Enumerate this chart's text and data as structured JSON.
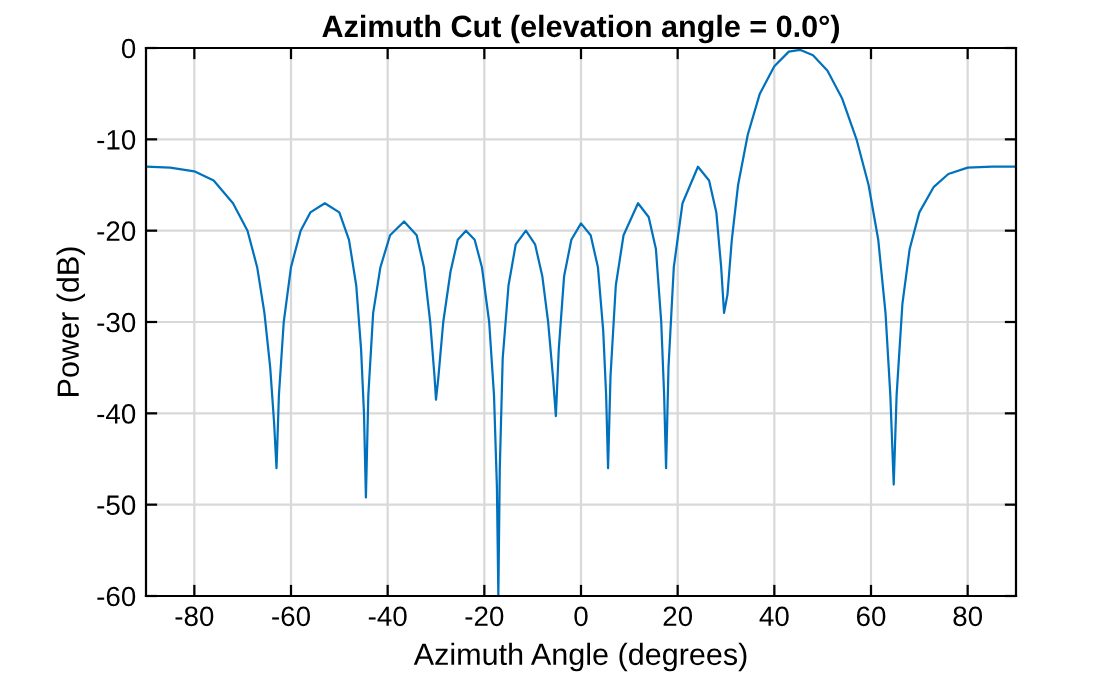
{
  "chart_data": {
    "type": "line",
    "title": "Azimuth Cut (elevation angle = 0.0°)",
    "xlabel": "Azimuth Angle (degrees)",
    "ylabel": "Power (dB)",
    "series": [
      {
        "color": "#0072bd",
        "x": [
          -90,
          -85,
          -80,
          -76,
          -72,
          -69,
          -67,
          -65.5,
          -64.3,
          -63.5,
          -63,
          -62.5,
          -61.5,
          -60,
          -58,
          -56,
          -53,
          -50,
          -48,
          -46.5,
          -45.5,
          -44.9,
          -44.5,
          -44,
          -43,
          -41.5,
          -39.5,
          -36.6,
          -34,
          -32.5,
          -31.2,
          -30.3,
          -30,
          -29.5,
          -28.5,
          -27,
          -25.5,
          -23.8,
          -22,
          -20.5,
          -19,
          -18,
          -17.4,
          -17.1,
          -16.8,
          -16.2,
          -15,
          -13.5,
          -11.4,
          -9.5,
          -8,
          -6.8,
          -5.8,
          -5.2,
          -4.6,
          -3.5,
          -2,
          0,
          2,
          3.5,
          4.6,
          5.2,
          5.6,
          6.1,
          7.2,
          8.8,
          11.8,
          14,
          15.5,
          16.6,
          17.2,
          17.6,
          18.1,
          19.2,
          21,
          24.2,
          26.5,
          28,
          29,
          29.6,
          30.3,
          31.2,
          32.5,
          34.5,
          37,
          40,
          43,
          45.3,
          48,
          51,
          54,
          57,
          59.5,
          61.5,
          63,
          64,
          64.7,
          65.3,
          66.5,
          68,
          70,
          73,
          76,
          80,
          85,
          90
        ],
        "values": [
          -13,
          -13.1,
          -13.5,
          -14.5,
          -17,
          -20,
          -24,
          -29,
          -35,
          -41,
          -46,
          -38,
          -30,
          -24,
          -20,
          -18,
          -17,
          -18,
          -21,
          -26,
          -33,
          -40,
          -49.2,
          -38,
          -29,
          -24,
          -20.5,
          -19,
          -20.5,
          -24,
          -30,
          -36,
          -38.5,
          -36,
          -30,
          -24.5,
          -21,
          -20,
          -21,
          -24,
          -30,
          -38,
          -48,
          -60,
          -46,
          -34,
          -26,
          -21.5,
          -20,
          -21.5,
          -25,
          -30,
          -36,
          -40.3,
          -33,
          -25,
          -21,
          -19.2,
          -20.5,
          -24,
          -31,
          -38,
          -46,
          -36,
          -26,
          -20.5,
          -17,
          -18.5,
          -22,
          -30,
          -38,
          -46,
          -35,
          -24,
          -17,
          -13,
          -14.5,
          -18,
          -24,
          -29,
          -27,
          -21,
          -15,
          -9.5,
          -5,
          -2,
          -0.4,
          -0.2,
          -0.8,
          -2.5,
          -5.5,
          -10,
          -15,
          -21,
          -29,
          -38,
          -47.8,
          -38,
          -28,
          -22,
          -18,
          -15.2,
          -13.8,
          -13.1,
          -13,
          -13
        ]
      }
    ],
    "xlim": [
      -90,
      90
    ],
    "xticks": [
      -80,
      -60,
      -40,
      -20,
      0,
      20,
      40,
      60,
      80
    ],
    "ylim": [
      -60,
      0
    ],
    "yticks": [
      -60,
      -50,
      -40,
      -30,
      -20,
      -10,
      0
    ],
    "grid": true,
    "marker": "none",
    "line_style": "solid"
  }
}
